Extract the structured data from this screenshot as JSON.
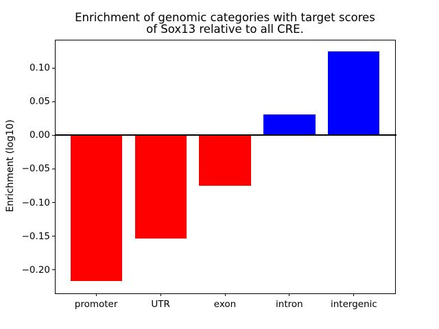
{
  "figure": {
    "background": "#ffffff"
  },
  "chart_data": {
    "type": "bar",
    "title": "Enrichment of genomic categories with target scores of Sox13 relative to all CRE.",
    "title_lines": [
      "Enrichment of genomic categories with target scores",
      "of Sox13 relative to all CRE."
    ],
    "xlabel": "",
    "ylabel": "Enrichment (log10)",
    "categories": [
      "promoter",
      "UTR",
      "exon",
      "intron",
      "intergenic"
    ],
    "values": [
      -0.217,
      -0.154,
      -0.075,
      0.031,
      0.125
    ],
    "bar_colors": [
      "#ff0000",
      "#ff0000",
      "#ff0000",
      "#0000ff",
      "#0000ff"
    ],
    "negative_color": "#ff0000",
    "positive_color": "#0000ff",
    "yticks": [
      0.1,
      0.05,
      0.0,
      -0.05,
      -0.1,
      -0.15,
      -0.2
    ],
    "ylim": [
      -0.234,
      0.142
    ],
    "zero_line_value": 0,
    "grid": "off",
    "legend": "none"
  }
}
